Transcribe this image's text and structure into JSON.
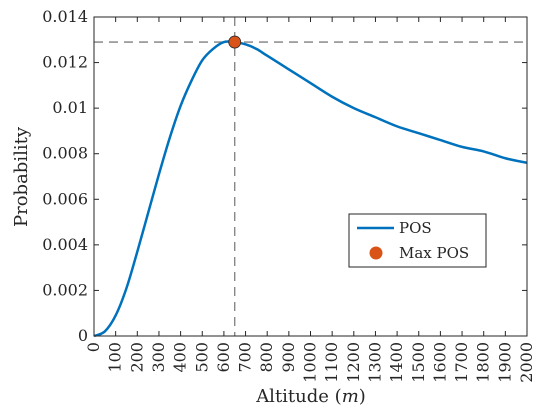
{
  "chart_data": {
    "type": "line",
    "xlabel": "Altitude (m)",
    "xlabel_parts": {
      "text": "Altitude (",
      "var": "m",
      "close": ")"
    },
    "ylabel": "Probability",
    "xlim": [
      0,
      2000
    ],
    "ylim": [
      0,
      0.014
    ],
    "x_ticks": [
      "0",
      "100",
      "200",
      "300",
      "400",
      "500",
      "600",
      "700",
      "800",
      "900",
      "1000",
      "1100",
      "1200",
      "1300",
      "1400",
      "1500",
      "1600",
      "1700",
      "1800",
      "1900",
      "2000"
    ],
    "y_ticks": [
      "0",
      "0.002",
      "0.004",
      "0.006",
      "0.008",
      "0.01",
      "0.012",
      "0.014"
    ],
    "grid": false,
    "legend_position": "center-right",
    "series": [
      {
        "name": "POS",
        "color": "#0072BD",
        "x": [
          0,
          50,
          100,
          150,
          200,
          250,
          300,
          350,
          400,
          450,
          500,
          550,
          600,
          650,
          700,
          750,
          800,
          900,
          1000,
          1100,
          1200,
          1300,
          1400,
          1500,
          1600,
          1700,
          1800,
          1900,
          2000
        ],
        "y": [
          0,
          0.0002,
          0.0009,
          0.0021,
          0.0037,
          0.0054,
          0.0071,
          0.0087,
          0.0101,
          0.0112,
          0.0121,
          0.0126,
          0.0129,
          0.0129,
          0.0128,
          0.0126,
          0.0123,
          0.0117,
          0.0111,
          0.0105,
          0.01,
          0.0096,
          0.0092,
          0.0089,
          0.0086,
          0.0083,
          0.0081,
          0.0078,
          0.0076
        ]
      }
    ],
    "markers": [
      {
        "name": "Max POS",
        "x": 650,
        "y": 0.0129,
        "color": "#D95319"
      }
    ],
    "reference_lines": {
      "x": 650,
      "y": 0.0129,
      "style": "dashed",
      "color": "#7f7f7f"
    }
  }
}
